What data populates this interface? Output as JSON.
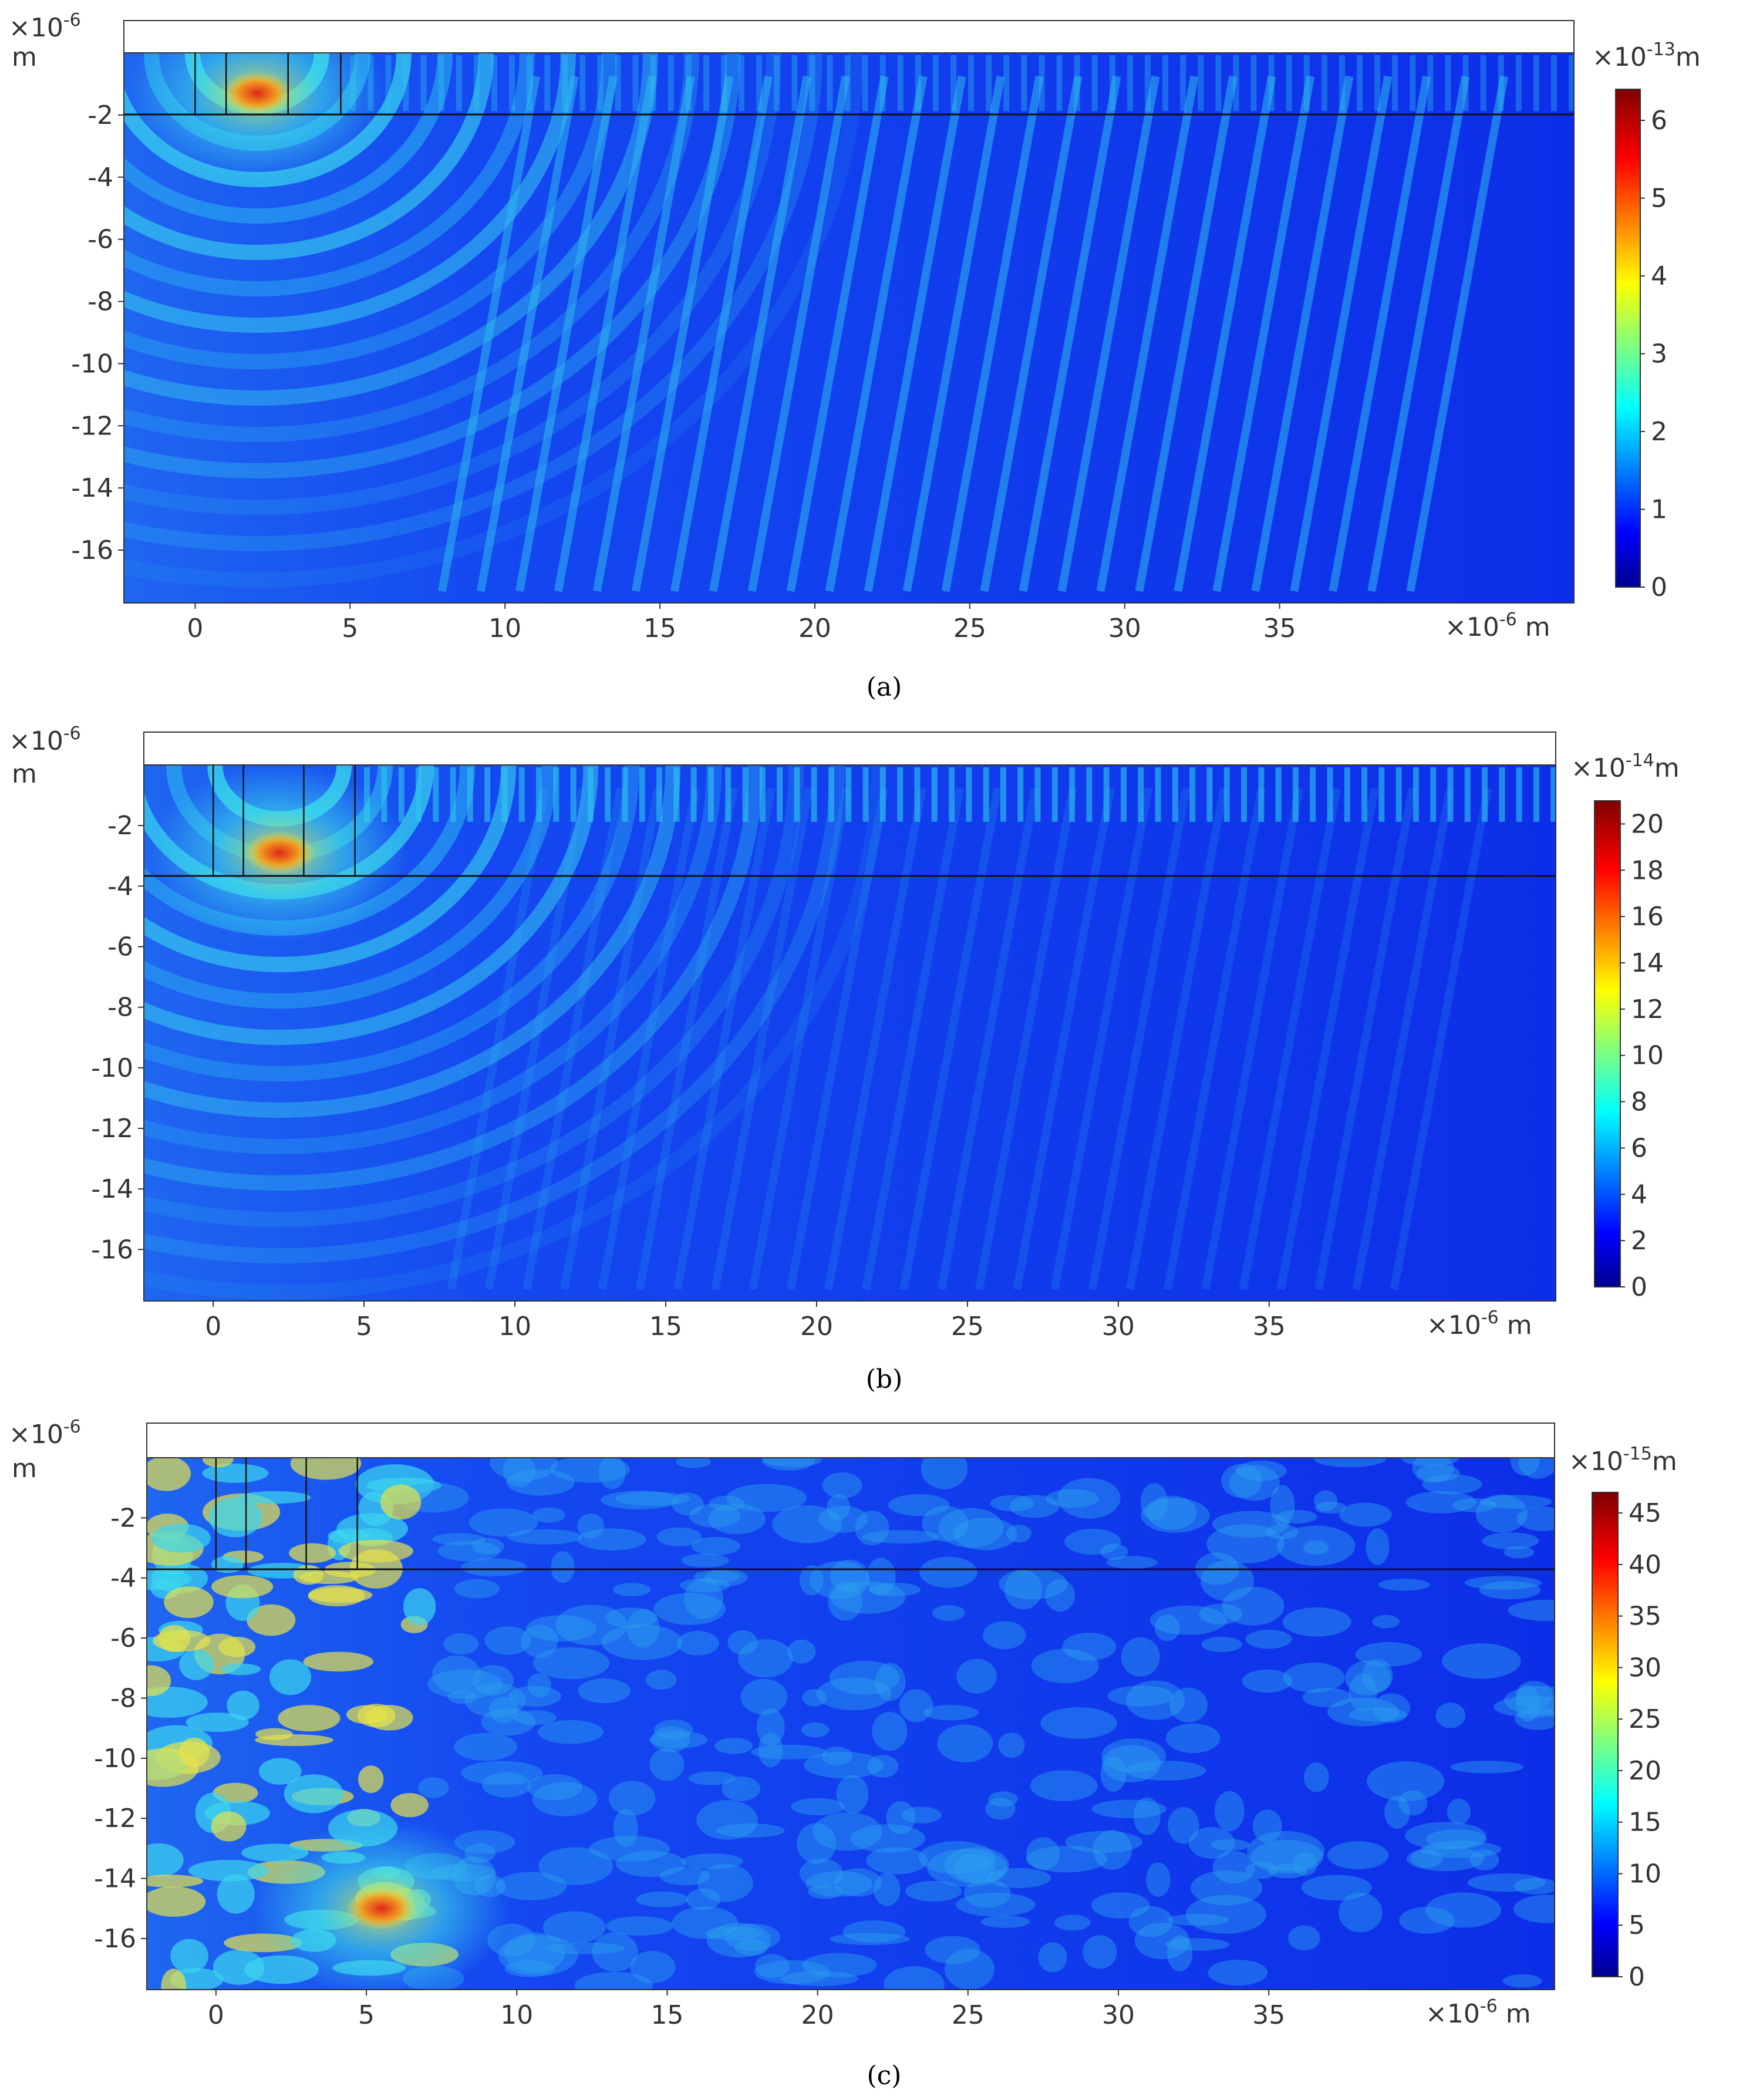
{
  "chart_data": [
    {
      "type": "heatmap",
      "caption": "(a)",
      "x_tick_labels": [
        "0",
        "5",
        "10",
        "15",
        "20",
        "25",
        "30",
        "35"
      ],
      "x_ticks": [
        0,
        5,
        10,
        15,
        20,
        25,
        30,
        35
      ],
      "x_unit": "×10⁻⁶ m",
      "xlim": [
        -2.3,
        44.5
      ],
      "y_tick_labels": [
        "-2",
        "-4",
        "-6",
        "-8",
        "-10",
        "-12",
        "-14",
        "-16"
      ],
      "y_ticks": [
        -2,
        -4,
        -6,
        -8,
        -10,
        -12,
        -14,
        -16
      ],
      "y_unit": "×10⁻⁶ m",
      "ylim": [
        -17.7,
        0
      ],
      "colorbar": {
        "unit": "×10⁻¹³ m",
        "ticks": [
          0,
          1,
          2,
          3,
          4,
          5,
          6
        ],
        "range": [
          0,
          6.4
        ]
      },
      "max_region_x": 2,
      "max_region_y": -1.3,
      "electrode_lines_x": [
        0,
        1,
        3,
        4.7
      ]
    },
    {
      "type": "heatmap",
      "caption": "(b)",
      "x_tick_labels": [
        "0",
        "5",
        "10",
        "15",
        "20",
        "25",
        "30",
        "35"
      ],
      "x_ticks": [
        0,
        5,
        10,
        15,
        20,
        25,
        30,
        35
      ],
      "x_unit": "×10⁻⁶ m",
      "xlim": [
        -2.3,
        44.5
      ],
      "y_tick_labels": [
        "-2",
        "-4",
        "-6",
        "-8",
        "-10",
        "-12",
        "-14",
        "-16"
      ],
      "y_ticks": [
        -2,
        -4,
        -6,
        -8,
        -10,
        -12,
        -14,
        -16
      ],
      "y_unit": "×10⁻⁶ m",
      "ylim": [
        -17.7,
        0
      ],
      "colorbar": {
        "unit": "×10⁻¹⁴ m",
        "ticks": [
          0,
          2,
          4,
          6,
          8,
          10,
          12,
          14,
          16,
          18,
          20
        ],
        "range": [
          0,
          21
        ]
      },
      "max_region_x": 2.2,
      "max_region_y": -2.9,
      "electrode_lines_x": [
        0,
        1,
        3,
        4.7
      ]
    },
    {
      "type": "heatmap",
      "caption": "(c)",
      "x_tick_labels": [
        "0",
        "5",
        "10",
        "15",
        "20",
        "25",
        "30",
        "35"
      ],
      "x_ticks": [
        0,
        5,
        10,
        15,
        20,
        25,
        30,
        35
      ],
      "x_unit": "×10⁻⁶ m",
      "xlim": [
        -2.3,
        44.5
      ],
      "y_tick_labels": [
        "-2",
        "-4",
        "-6",
        "-8",
        "-10",
        "-12",
        "-14",
        "-16"
      ],
      "y_ticks": [
        -2,
        -4,
        -6,
        -8,
        -10,
        -12,
        -14,
        -16
      ],
      "y_unit": "×10⁻⁶ m",
      "ylim": [
        -17.7,
        0
      ],
      "colorbar": {
        "unit": "×10⁻¹⁵ m",
        "ticks": [
          0,
          5,
          10,
          15,
          20,
          25,
          30,
          35,
          40,
          45
        ],
        "range": [
          0,
          47
        ]
      },
      "max_region_x": 5.5,
      "max_region_y": -15,
      "electrode_lines_x": [
        0,
        1,
        3,
        4.7
      ]
    }
  ],
  "labels": {
    "y_unit_top": "×10",
    "y_unit_exp": "-6",
    "y_unit_m": "m",
    "x_unit_base": "×10",
    "x_unit_exp": "-6",
    "x_unit_m": "m",
    "cb_a_base": "×10",
    "cb_a_exp": "-13",
    "cb_a_m": "m",
    "cb_b_base": "×10",
    "cb_b_exp": "-14",
    "cb_b_m": "m",
    "cb_c_base": "×10",
    "cb_c_exp": "-15",
    "cb_c_m": "m",
    "caption_a": "(a)",
    "caption_b": "(b)",
    "caption_c": "(c)"
  },
  "colors": {
    "jet_low": "#0a1fe6",
    "jet_mid": "#22d2f0",
    "jet_yellow": "#e8e83a",
    "jet_high": "#e0301e",
    "frame": "#333333"
  }
}
